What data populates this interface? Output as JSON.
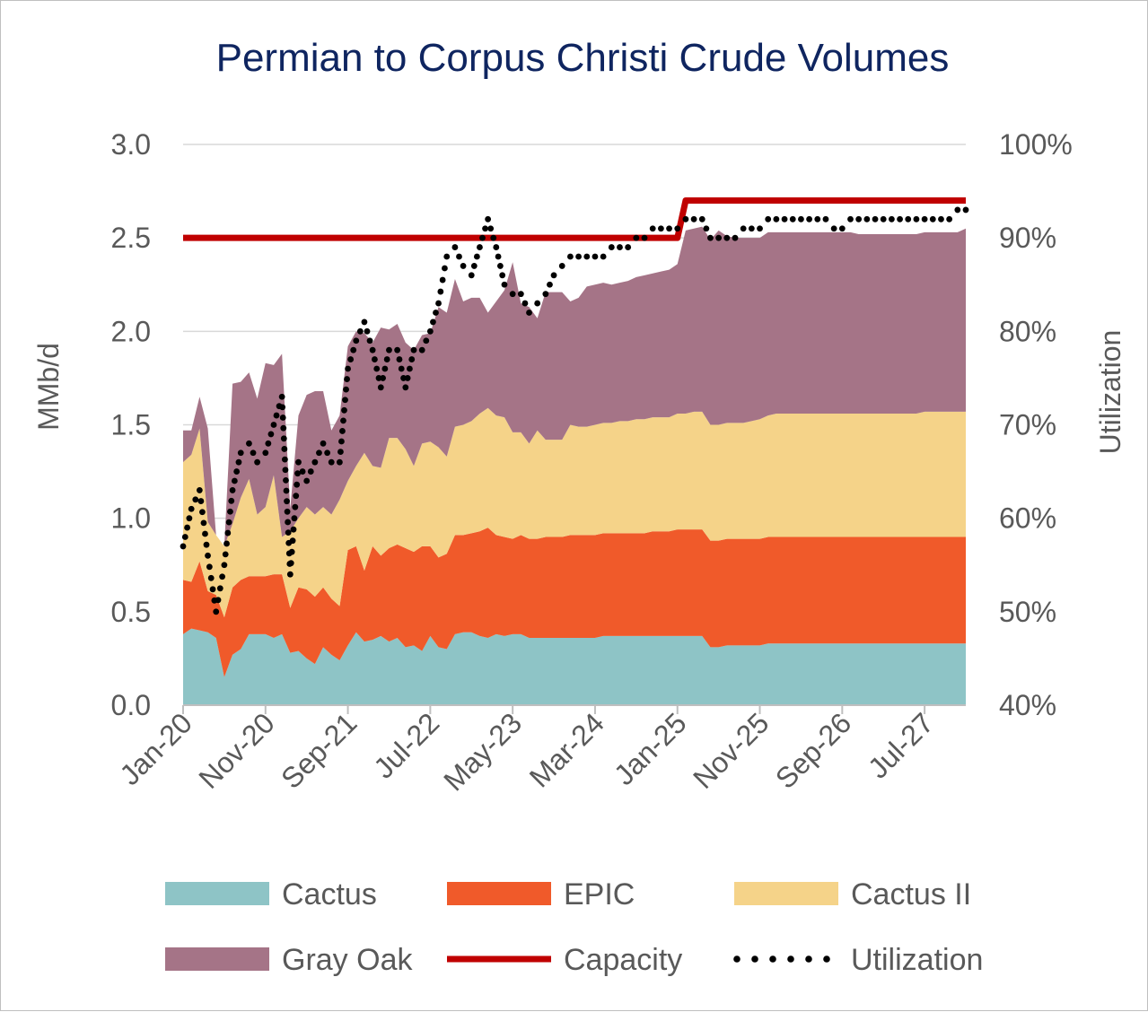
{
  "chart_data": {
    "type": "area",
    "title": "Permian to Corpus Christi Crude Volumes",
    "ylabel": "MMb/d",
    "y2label": "Utilization",
    "ylim": [
      0,
      3.0
    ],
    "y2lim": [
      0.4,
      1.0
    ],
    "yticks": [
      "0.0",
      "0.5",
      "1.0",
      "1.5",
      "2.0",
      "2.5",
      "3.0"
    ],
    "y2ticks": [
      "40%",
      "50%",
      "60%",
      "70%",
      "80%",
      "90%",
      "100%"
    ],
    "x_start": "Jan-20",
    "x_months": 96,
    "xtick_labels": [
      "Jan-20",
      "Nov-20",
      "Sep-21",
      "Jul-22",
      "May-23",
      "Mar-24",
      "Jan-25",
      "Nov-25",
      "Sep-26",
      "Jul-27"
    ],
    "xtick_month_index": [
      0,
      10,
      20,
      30,
      40,
      50,
      60,
      70,
      80,
      90
    ],
    "legend_position": "bottom",
    "series": [
      {
        "name": "Cactus",
        "kind": "stacked-area",
        "color": "#8ec4c6",
        "values": [
          0.38,
          0.41,
          0.4,
          0.39,
          0.36,
          0.15,
          0.27,
          0.3,
          0.38,
          0.38,
          0.38,
          0.36,
          0.38,
          0.28,
          0.29,
          0.25,
          0.22,
          0.31,
          0.27,
          0.24,
          0.32,
          0.39,
          0.34,
          0.35,
          0.37,
          0.34,
          0.36,
          0.31,
          0.32,
          0.29,
          0.37,
          0.31,
          0.3,
          0.38,
          0.39,
          0.39,
          0.37,
          0.36,
          0.38,
          0.37,
          0.38,
          0.38,
          0.36,
          0.36,
          0.36,
          0.36,
          0.36,
          0.36,
          0.36,
          0.36,
          0.36,
          0.37,
          0.37,
          0.37,
          0.37,
          0.37,
          0.37,
          0.37,
          0.37,
          0.37,
          0.37,
          0.37,
          0.37,
          0.37,
          0.31,
          0.31,
          0.32,
          0.32,
          0.32,
          0.32,
          0.32,
          0.33,
          0.33,
          0.33,
          0.33,
          0.33,
          0.33,
          0.33,
          0.33,
          0.33,
          0.33,
          0.33,
          0.33,
          0.33,
          0.33,
          0.33,
          0.33,
          0.33,
          0.33,
          0.33,
          0.33,
          0.33,
          0.33,
          0.33,
          0.33,
          0.33
        ]
      },
      {
        "name": "EPIC",
        "kind": "stacked-area",
        "color": "#f05a2a",
        "values": [
          0.29,
          0.25,
          0.37,
          0.22,
          0.23,
          0.32,
          0.36,
          0.37,
          0.31,
          0.31,
          0.31,
          0.34,
          0.32,
          0.24,
          0.34,
          0.37,
          0.36,
          0.32,
          0.3,
          0.29,
          0.51,
          0.46,
          0.38,
          0.5,
          0.43,
          0.5,
          0.5,
          0.53,
          0.5,
          0.56,
          0.48,
          0.48,
          0.51,
          0.53,
          0.52,
          0.53,
          0.56,
          0.59,
          0.53,
          0.53,
          0.51,
          0.53,
          0.53,
          0.53,
          0.54,
          0.54,
          0.54,
          0.55,
          0.55,
          0.55,
          0.55,
          0.55,
          0.55,
          0.55,
          0.55,
          0.55,
          0.55,
          0.56,
          0.56,
          0.56,
          0.57,
          0.57,
          0.57,
          0.57,
          0.57,
          0.57,
          0.57,
          0.57,
          0.57,
          0.57,
          0.57,
          0.57,
          0.57,
          0.57,
          0.57,
          0.57,
          0.57,
          0.57,
          0.57,
          0.57,
          0.57,
          0.57,
          0.57,
          0.57,
          0.57,
          0.57,
          0.57,
          0.57,
          0.57,
          0.57,
          0.57,
          0.57,
          0.57,
          0.57,
          0.57,
          0.57
        ]
      },
      {
        "name": "Cactus II",
        "kind": "stacked-area",
        "color": "#f5d389",
        "values": [
          0.63,
          0.68,
          0.71,
          0.37,
          0.32,
          0.38,
          0.34,
          0.44,
          0.52,
          0.33,
          0.37,
          0.53,
          0.2,
          0.41,
          0.37,
          0.44,
          0.44,
          0.43,
          0.45,
          0.57,
          0.37,
          0.43,
          0.63,
          0.43,
          0.47,
          0.59,
          0.57,
          0.53,
          0.46,
          0.55,
          0.56,
          0.59,
          0.52,
          0.58,
          0.59,
          0.6,
          0.63,
          0.64,
          0.64,
          0.64,
          0.57,
          0.55,
          0.51,
          0.58,
          0.52,
          0.52,
          0.52,
          0.59,
          0.58,
          0.58,
          0.59,
          0.59,
          0.59,
          0.6,
          0.6,
          0.61,
          0.61,
          0.61,
          0.61,
          0.61,
          0.62,
          0.62,
          0.63,
          0.63,
          0.62,
          0.62,
          0.62,
          0.62,
          0.62,
          0.63,
          0.64,
          0.65,
          0.66,
          0.66,
          0.66,
          0.66,
          0.66,
          0.66,
          0.66,
          0.66,
          0.66,
          0.66,
          0.66,
          0.66,
          0.66,
          0.66,
          0.66,
          0.66,
          0.66,
          0.66,
          0.67,
          0.67,
          0.67,
          0.67,
          0.67,
          0.67
        ]
      },
      {
        "name": "Gray Oak",
        "kind": "stacked-area",
        "color": "#a57487",
        "values": [
          0.17,
          0.13,
          0.17,
          0.5,
          0.0,
          0.0,
          0.75,
          0.62,
          0.57,
          0.62,
          0.77,
          0.59,
          0.98,
          0.12,
          0.55,
          0.6,
          0.66,
          0.62,
          0.45,
          0.45,
          0.72,
          0.72,
          0.64,
          0.66,
          0.75,
          0.58,
          0.61,
          0.57,
          0.62,
          0.58,
          0.58,
          0.75,
          0.77,
          0.79,
          0.66,
          0.66,
          0.62,
          0.51,
          0.61,
          0.68,
          0.91,
          0.69,
          0.73,
          0.6,
          0.79,
          0.79,
          0.79,
          0.66,
          0.69,
          0.75,
          0.75,
          0.75,
          0.74,
          0.74,
          0.75,
          0.76,
          0.77,
          0.77,
          0.78,
          0.79,
          0.8,
          0.98,
          0.98,
          0.99,
          0.99,
          1.04,
          1.0,
          0.99,
          0.99,
          0.98,
          0.97,
          0.98,
          0.97,
          0.97,
          0.97,
          0.97,
          0.97,
          0.97,
          0.97,
          0.97,
          0.97,
          0.97,
          0.96,
          0.96,
          0.96,
          0.96,
          0.96,
          0.96,
          0.96,
          0.96,
          0.96,
          0.96,
          0.96,
          0.96,
          0.96,
          0.98
        ]
      },
      {
        "name": "Capacity",
        "kind": "line",
        "axis": "left",
        "color": "#c00000",
        "values": [
          2.5,
          2.5,
          2.5,
          2.5,
          2.5,
          2.5,
          2.5,
          2.5,
          2.5,
          2.5,
          2.5,
          2.5,
          2.5,
          2.5,
          2.5,
          2.5,
          2.5,
          2.5,
          2.5,
          2.5,
          2.5,
          2.5,
          2.5,
          2.5,
          2.5,
          2.5,
          2.5,
          2.5,
          2.5,
          2.5,
          2.5,
          2.5,
          2.5,
          2.5,
          2.5,
          2.5,
          2.5,
          2.5,
          2.5,
          2.5,
          2.5,
          2.5,
          2.5,
          2.5,
          2.5,
          2.5,
          2.5,
          2.5,
          2.5,
          2.5,
          2.5,
          2.5,
          2.5,
          2.5,
          2.5,
          2.5,
          2.5,
          2.5,
          2.5,
          2.5,
          2.5,
          2.7,
          2.7,
          2.7,
          2.7,
          2.7,
          2.7,
          2.7,
          2.7,
          2.7,
          2.7,
          2.7,
          2.7,
          2.7,
          2.7,
          2.7,
          2.7,
          2.7,
          2.7,
          2.7,
          2.7,
          2.7,
          2.7,
          2.7,
          2.7,
          2.7,
          2.7,
          2.7,
          2.7,
          2.7,
          2.7,
          2.7,
          2.7,
          2.7,
          2.7,
          2.7
        ]
      },
      {
        "name": "Utilization",
        "kind": "dotted-line",
        "axis": "right",
        "color": "#000000",
        "values": [
          0.57,
          0.61,
          0.63,
          0.56,
          0.5,
          0.55,
          0.63,
          0.67,
          0.68,
          0.66,
          0.67,
          0.7,
          0.73,
          0.54,
          0.66,
          0.64,
          0.66,
          0.68,
          0.66,
          0.66,
          0.76,
          0.79,
          0.81,
          0.78,
          0.74,
          0.78,
          0.78,
          0.74,
          0.78,
          0.78,
          0.8,
          0.83,
          0.88,
          0.89,
          0.87,
          0.86,
          0.89,
          0.92,
          0.89,
          0.85,
          0.84,
          0.84,
          0.82,
          0.83,
          0.84,
          0.86,
          0.87,
          0.88,
          0.88,
          0.88,
          0.88,
          0.88,
          0.89,
          0.89,
          0.89,
          0.9,
          0.9,
          0.91,
          0.91,
          0.91,
          0.91,
          0.92,
          0.92,
          0.92,
          0.9,
          0.9,
          0.9,
          0.9,
          0.91,
          0.91,
          0.91,
          0.92,
          0.92,
          0.92,
          0.92,
          0.92,
          0.92,
          0.92,
          0.92,
          0.91,
          0.91,
          0.92,
          0.92,
          0.92,
          0.92,
          0.92,
          0.92,
          0.92,
          0.92,
          0.92,
          0.92,
          0.92,
          0.92,
          0.92,
          0.93,
          0.93
        ]
      }
    ]
  }
}
